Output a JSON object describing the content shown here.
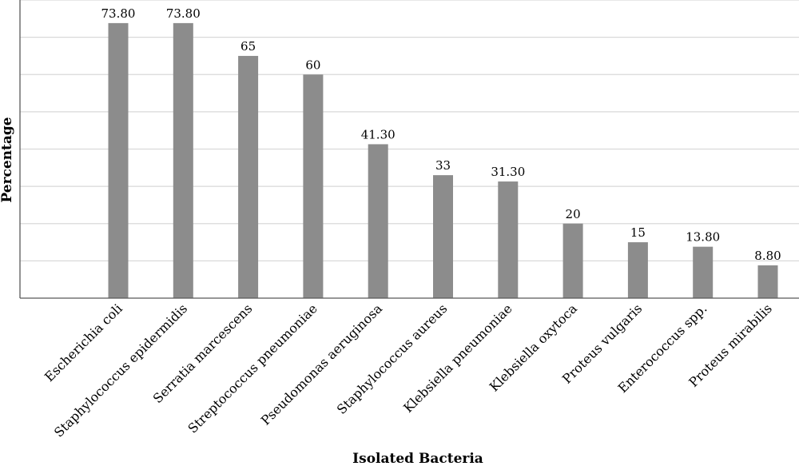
{
  "chart_data": {
    "type": "bar",
    "xlabel": "Isolated Bacteria",
    "ylabel": "Percentage",
    "categories": [
      "Escherichia coli",
      "Staphylococcus epidermidis",
      "Serratia marcescens",
      "Streptococcus pneumoniae",
      "Pseudomonas aeruginosa",
      "Staphylococcus aureus",
      "Klebsiella pneumoniae",
      "Klebsiella oxytoca",
      "Proteus vulgaris",
      "Enterococcus spp.",
      "Proteus mirabilis"
    ],
    "values": [
      73.8,
      73.8,
      65,
      60,
      41.3,
      33,
      31.3,
      20,
      15,
      13.8,
      8.8
    ],
    "value_labels": [
      "73.80",
      "73.80",
      "65",
      "60",
      "41.30",
      "33",
      "31.30",
      "20",
      "15",
      "13.80",
      "8.80"
    ],
    "ylim": [
      0,
      80
    ],
    "grid": true,
    "bar_color": "#8c8c8c",
    "grid_color": "#d9d9d9",
    "axis_color": "#595959"
  }
}
